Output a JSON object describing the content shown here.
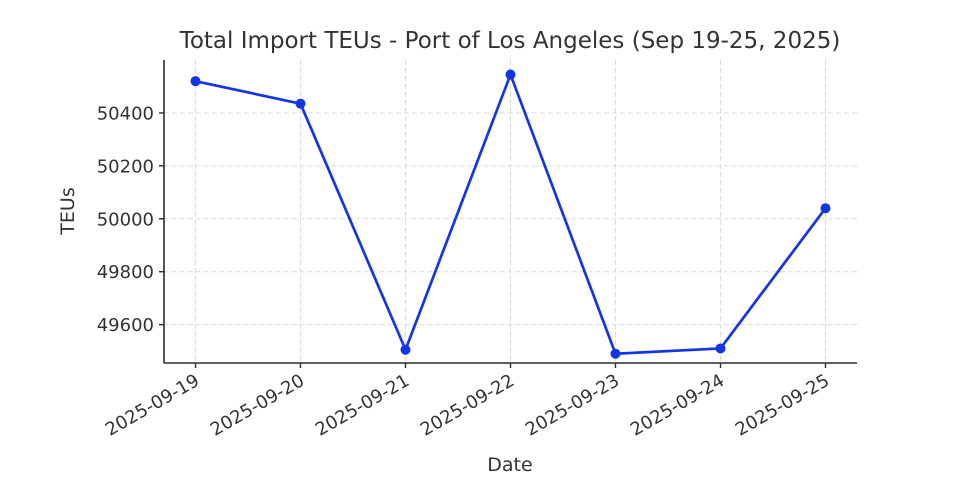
{
  "figure": {
    "background_color": "#ffffff"
  },
  "chart_data": {
    "type": "line",
    "title": "Total Import TEUs - Port of Los Angeles (Sep 19-25, 2025)",
    "xlabel": "Date",
    "ylabel": "TEUs",
    "x": [
      "2025-09-19",
      "2025-09-20",
      "2025-09-21",
      "2025-09-22",
      "2025-09-23",
      "2025-09-24",
      "2025-09-25"
    ],
    "series": [
      {
        "name": "Total Import TEUs",
        "values": [
          50520,
          50435,
          49505,
          50545,
          49490,
          49510,
          50040
        ]
      }
    ],
    "yticks": [
      49600,
      49800,
      50000,
      50200,
      50400
    ],
    "ylim": [
      49455,
      50600
    ],
    "xlim": [
      -0.3,
      6.3
    ],
    "x_tick_rotation": 30,
    "grid": true,
    "grid_style": "dashed",
    "legend_position": "none",
    "line_color": "#1435e3",
    "marker": "circle",
    "marker_radius": 5,
    "grid_color": "#d9d9d9",
    "axis_color": "#2b2b2b",
    "text_color": "#333333"
  }
}
